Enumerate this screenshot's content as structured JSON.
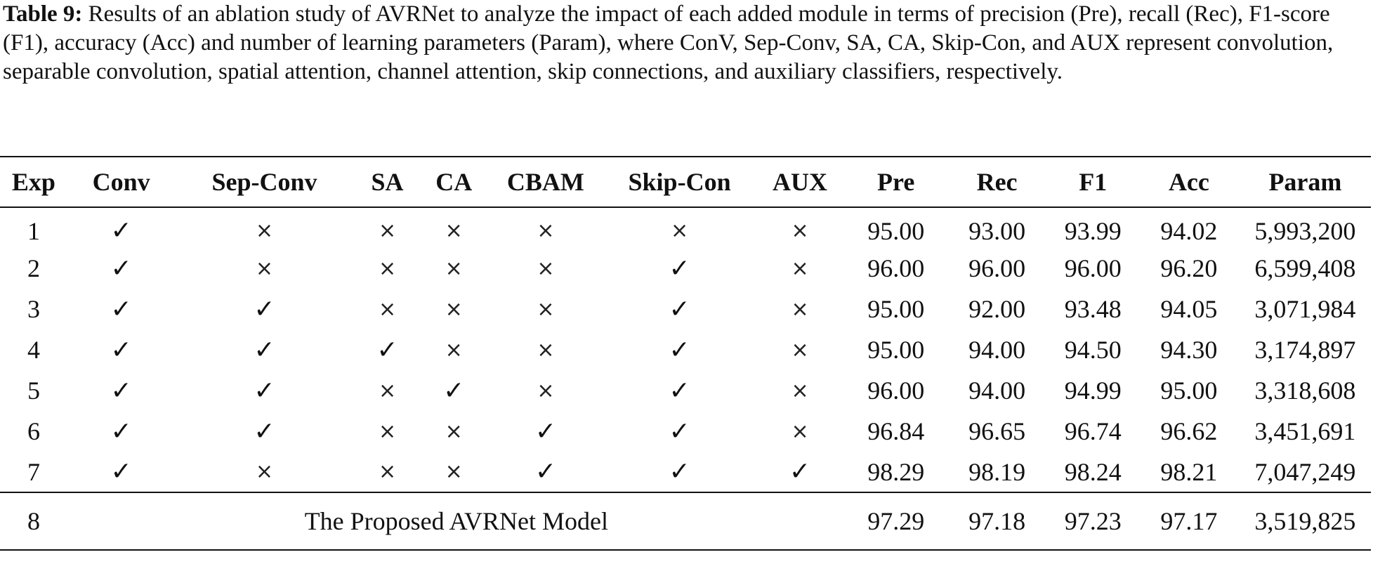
{
  "caption": {
    "label": "Table 9:",
    "text": "Results of an ablation study of AVRNet to analyze the impact of each added module in terms of precision (Pre), recall (Rec), F1-score (F1), accuracy (Acc) and number of learning parameters (Param), where ConV, Sep-Conv, SA, CA, Skip-Con, and AUX represent convolution, separable convolution, spatial attention, channel attention, skip connections, and auxiliary classifiers, respectively."
  },
  "table": {
    "headers": [
      "Exp",
      "Conv",
      "Sep-Conv",
      "SA",
      "CA",
      "CBAM",
      "Skip-Con",
      "AUX",
      "Pre",
      "Rec",
      "F1",
      "Acc",
      "Param"
    ],
    "symbols": {
      "yes": "✓",
      "no": "×"
    },
    "rows": [
      {
        "exp": "1",
        "conv": "✓",
        "sepconv": "×",
        "sa": "×",
        "ca": "×",
        "cbam": "×",
        "skip": "×",
        "aux": "×",
        "pre": "95.00",
        "rec": "93.00",
        "f1": "93.99",
        "acc": "94.02",
        "param": "5,993,200"
      },
      {
        "exp": "2",
        "conv": "✓",
        "sepconv": "×",
        "sa": "×",
        "ca": "×",
        "cbam": "×",
        "skip": "✓",
        "aux": "×",
        "pre": "96.00",
        "rec": "96.00",
        "f1": "96.00",
        "acc": "96.20",
        "param": "6,599,408"
      },
      {
        "exp": "3",
        "conv": "✓",
        "sepconv": "✓",
        "sa": "×",
        "ca": "×",
        "cbam": "×",
        "skip": "✓",
        "aux": "×",
        "pre": "95.00",
        "rec": "92.00",
        "f1": "93.48",
        "acc": "94.05",
        "param": "3,071,984"
      },
      {
        "exp": "4",
        "conv": "✓",
        "sepconv": "✓",
        "sa": "✓",
        "ca": "×",
        "cbam": "×",
        "skip": "✓",
        "aux": "×",
        "pre": "95.00",
        "rec": "94.00",
        "f1": "94.50",
        "acc": "94.30",
        "param": "3,174,897"
      },
      {
        "exp": "5",
        "conv": "✓",
        "sepconv": "✓",
        "sa": "×",
        "ca": "✓",
        "cbam": "×",
        "skip": "✓",
        "aux": "×",
        "pre": "96.00",
        "rec": "94.00",
        "f1": "94.99",
        "acc": "95.00",
        "param": "3,318,608"
      },
      {
        "exp": "6",
        "conv": "✓",
        "sepconv": "✓",
        "sa": "×",
        "ca": "×",
        "cbam": "✓",
        "skip": "✓",
        "aux": "×",
        "pre": "96.84",
        "rec": "96.65",
        "f1": "96.74",
        "acc": "96.62",
        "param": "3,451,691"
      },
      {
        "exp": "7",
        "conv": "✓",
        "sepconv": "×",
        "sa": "×",
        "ca": "×",
        "cbam": "✓",
        "skip": "✓",
        "aux": "✓",
        "pre": "98.29",
        "rec": "98.19",
        "f1": "98.24",
        "acc": "98.21",
        "param": "7,047,249"
      }
    ],
    "final_row": {
      "exp": "8",
      "label": "The Proposed AVRNet Model",
      "pre": "97.29",
      "rec": "97.18",
      "f1": "97.23",
      "acc": "97.17",
      "param": "3,519,825"
    }
  }
}
